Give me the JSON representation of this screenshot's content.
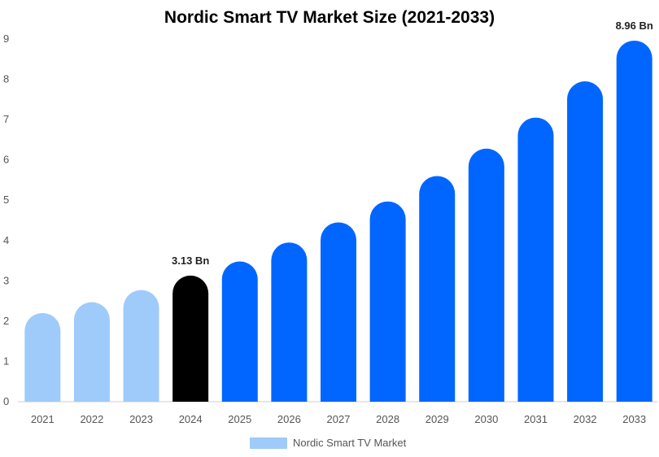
{
  "chart_data": {
    "type": "bar",
    "title": "Nordic Smart TV Market Size (2021-2033)",
    "xlabel": "",
    "ylabel": "",
    "categories": [
      "2021",
      "2022",
      "2023",
      "2024",
      "2025",
      "2026",
      "2027",
      "2028",
      "2029",
      "2030",
      "2031",
      "2032",
      "2033"
    ],
    "series": [
      {
        "name": "Nordic Smart TV Market",
        "values": [
          2.2,
          2.47,
          2.77,
          3.13,
          3.48,
          3.95,
          4.45,
          4.97,
          5.6,
          6.28,
          7.05,
          7.95,
          8.96
        ]
      }
    ],
    "bar_colors": [
      "#9ecbfa",
      "#9ecbfa",
      "#9ecbfa",
      "#000000",
      "#0066ff",
      "#0066ff",
      "#0066ff",
      "#0066ff",
      "#0066ff",
      "#0066ff",
      "#0066ff",
      "#0066ff",
      "#0066ff"
    ],
    "data_labels": [
      {
        "category": "2024",
        "text": "3.13 Bn"
      },
      {
        "category": "2033",
        "text": "8.96 Bn"
      }
    ],
    "ylim": [
      0,
      9
    ],
    "yticks": [
      0,
      1,
      2,
      3,
      4,
      5,
      6,
      7,
      8,
      9
    ],
    "grid": false,
    "legend": {
      "position": "bottom",
      "swatch_color": "#9ecbfa"
    }
  }
}
